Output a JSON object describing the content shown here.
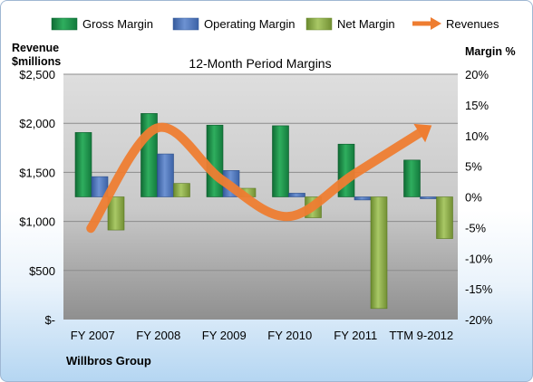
{
  "chart_data": {
    "type": "bar",
    "title": "12-Month Period Margins",
    "left_axis_title": [
      "Revenue",
      "$millions"
    ],
    "right_axis_title": "Margin %",
    "company": "Willbros Group",
    "categories": [
      "FY 2007",
      "FY 2008",
      "FY 2009",
      "FY 2010",
      "FY 2011",
      "TTM 9-2012"
    ],
    "left_ticks": [
      "$-",
      "$500",
      "$1,000",
      "$1,500",
      "$2,000",
      "$2,500"
    ],
    "right_ticks": [
      "-20%",
      "-15%",
      "-10%",
      "-5%",
      "0%",
      "5%",
      "10%",
      "15%",
      "20%"
    ],
    "left_range": [
      0,
      2500
    ],
    "right_range": [
      -20,
      20
    ],
    "series": [
      {
        "name": "Gross Margin",
        "kind": "bar",
        "axis": "right",
        "color": "#1f8a4a",
        "values": [
          10.5,
          13.6,
          11.7,
          11.6,
          8.6,
          6.0
        ]
      },
      {
        "name": "Operating Margin",
        "kind": "bar",
        "axis": "right",
        "color": "#4f74b8",
        "values": [
          3.3,
          7.0,
          4.3,
          0.6,
          -0.5,
          -0.3
        ]
      },
      {
        "name": "Net Margin",
        "kind": "bar",
        "axis": "right",
        "color": "#8fb04a",
        "values": [
          -5.4,
          2.2,
          1.4,
          -3.4,
          -18.2,
          -6.8
        ]
      },
      {
        "name": "Revenues",
        "kind": "line",
        "axis": "left",
        "color": "#ee7d31",
        "values": [
          930,
          1950,
          1420,
          1050,
          1480,
          1900
        ]
      }
    ]
  }
}
